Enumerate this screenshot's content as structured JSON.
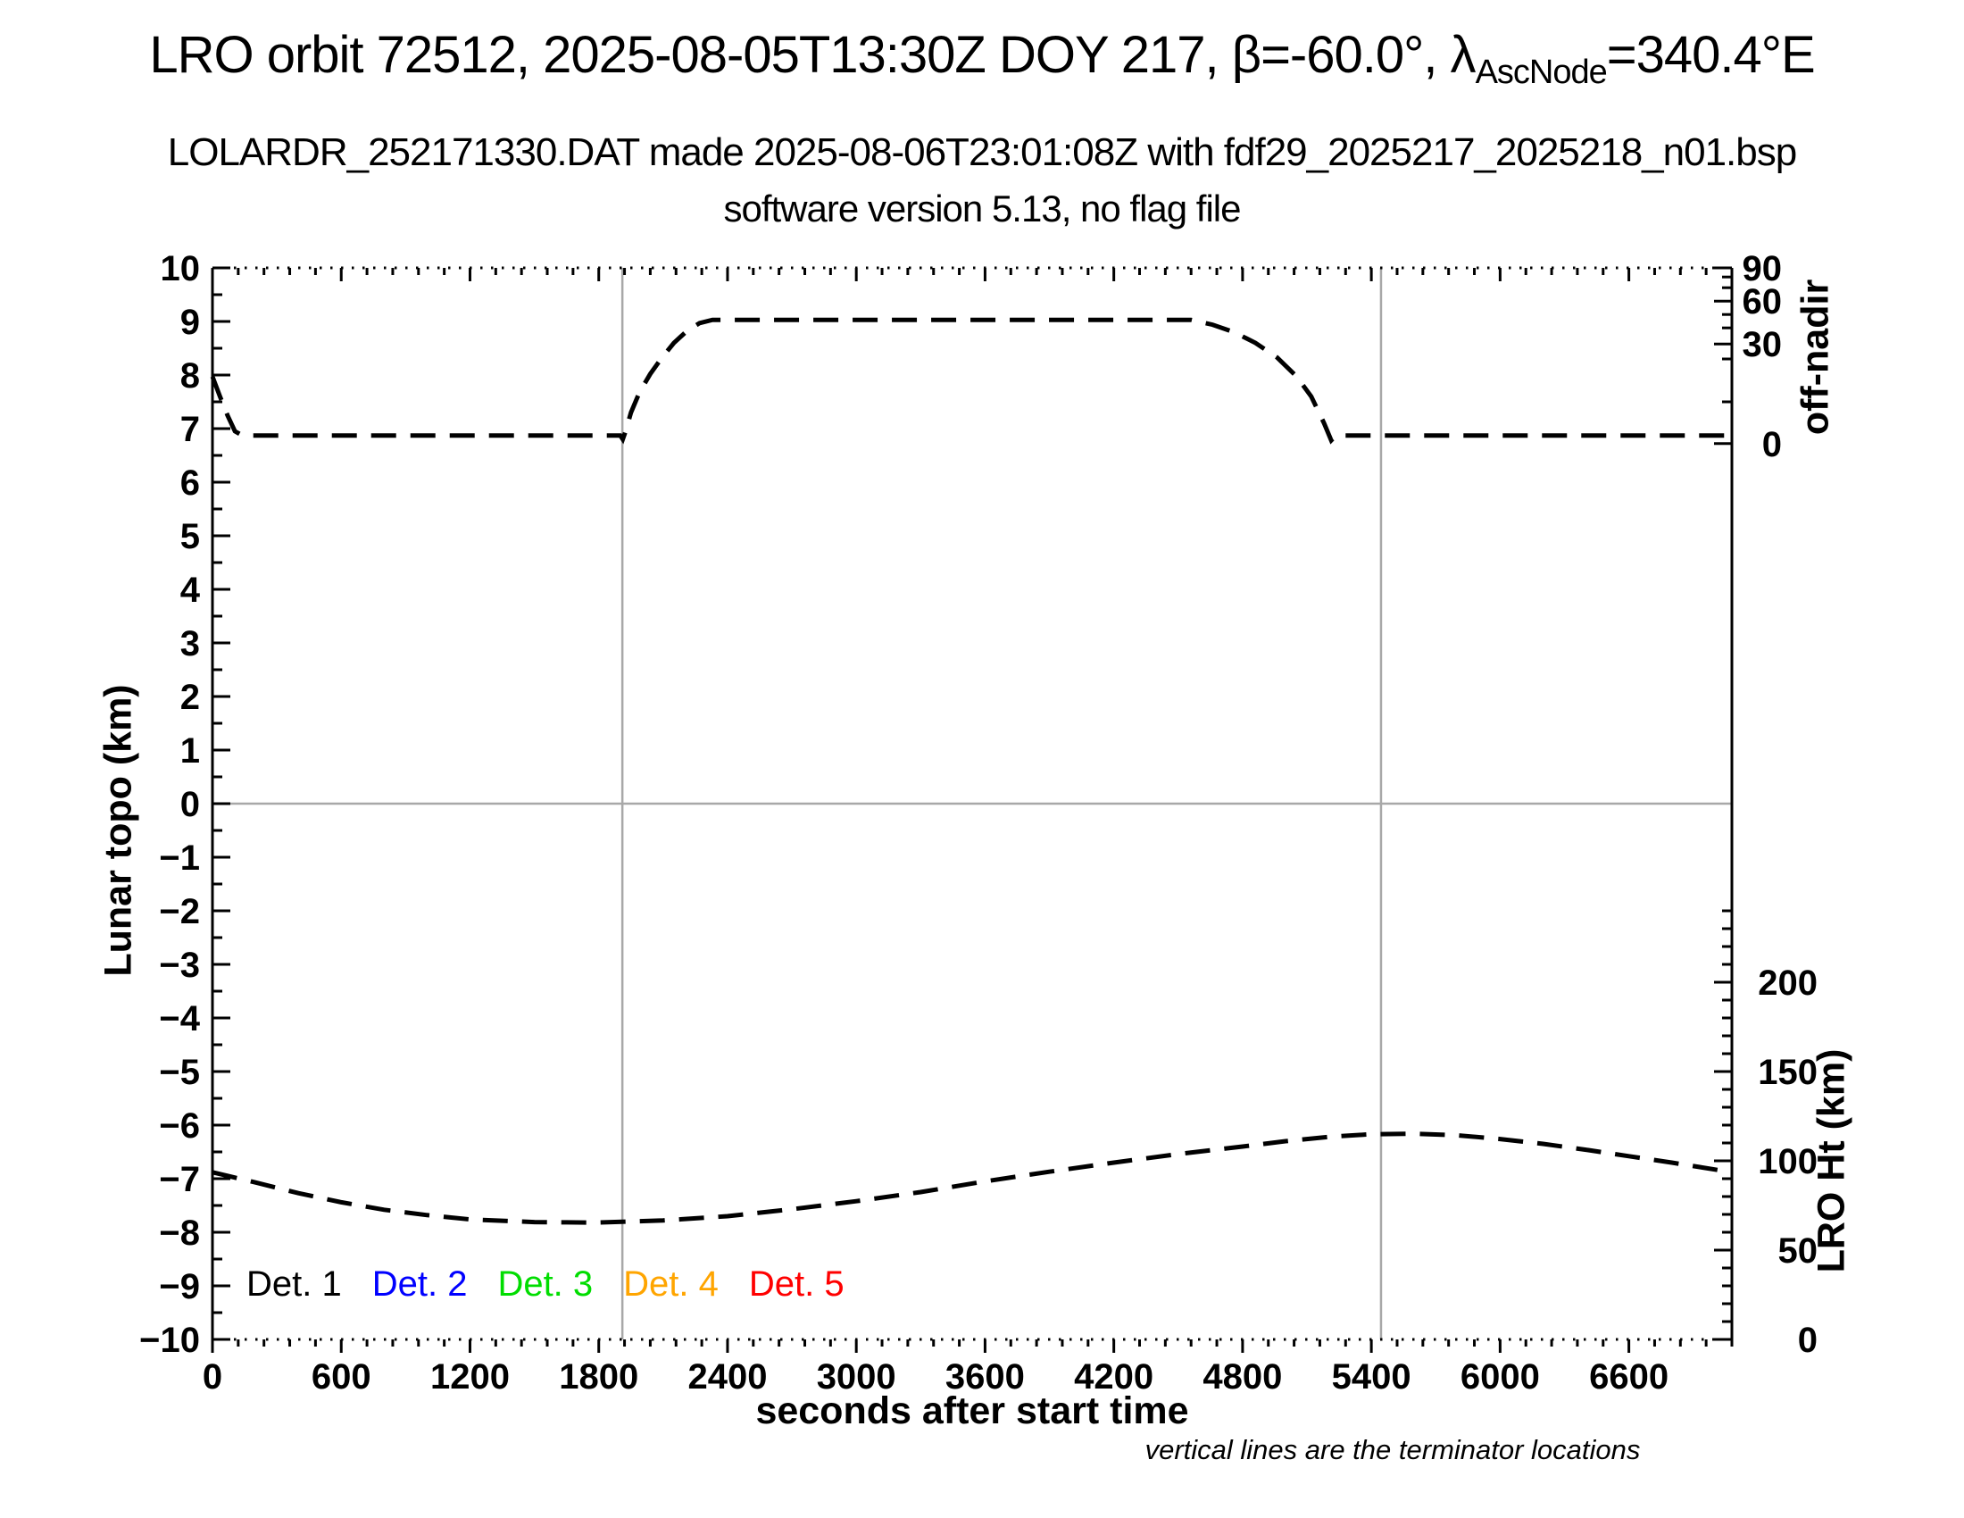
{
  "header": {
    "title_prefix": "LRO orbit 72512, 2025-08-05T13:30Z DOY 217, β=-60.0°, λ",
    "title_subscript": "AscNode",
    "title_suffix": "=340.4°E",
    "subtitle": "LOLARDR_252171330.DAT made 2025-08-06T23:01:08Z with fdf29_2025217_2025218_n01.bsp",
    "subtitle2": "software version 5.13, no flag file"
  },
  "note": "vertical lines are the terminator locations",
  "legend": {
    "items": [
      {
        "label": "Det. 1",
        "color": "#000000"
      },
      {
        "label": "Det. 2",
        "color": "#0000ff"
      },
      {
        "label": "Det. 3",
        "color": "#00dd00"
      },
      {
        "label": "Det. 4",
        "color": "#ffa500"
      },
      {
        "label": "Det. 5",
        "color": "#ff0000"
      }
    ]
  },
  "chart_data": {
    "type": "line",
    "xlabel": "seconds after start time",
    "x_range_s": [
      0,
      7080
    ],
    "x_major_tick_interval_s": 600,
    "x_minor_tick_interval_s": 120,
    "x_tick_values": [
      0,
      600,
      1200,
      1800,
      2400,
      3000,
      3600,
      4200,
      4800,
      5400,
      6000,
      6600
    ],
    "x_tick_labels": [
      "0",
      "600",
      "1200",
      "1800",
      "2400",
      "3000",
      "3600",
      "4200",
      "4800",
      "5400",
      "6000",
      "6600"
    ],
    "left_axis": {
      "label": "Lunar topo (km)",
      "range": [
        -10,
        10
      ],
      "tick_values": [
        10,
        9,
        8,
        7,
        6,
        5,
        4,
        3,
        2,
        1,
        0,
        -1,
        -2,
        -3,
        -4,
        -5,
        -6,
        -7,
        -8,
        -9,
        -10
      ],
      "tick_labels": [
        "10",
        "9",
        "8",
        "7",
        "6",
        "5",
        "4",
        "3",
        "2",
        "1",
        "0",
        "−1",
        "−2",
        "−3",
        "−4",
        "−5",
        "−6",
        "−7",
        "−8",
        "−9",
        "−10"
      ],
      "minor_step": 0.5
    },
    "right_top_axis": {
      "label": "off-nadir",
      "tick_labels": [
        "90",
        "60",
        "30",
        "0"
      ],
      "tick_y_km": [
        10.0,
        9.38,
        8.58,
        6.72
      ],
      "minor_y_km": [
        9.83,
        9.63,
        9.13,
        8.88,
        8.3,
        7.5
      ]
    },
    "right_bottom_axis": {
      "label": "LRO Ht (km)",
      "tick_values_km": [
        200,
        150,
        100,
        50,
        0
      ],
      "tick_labels": [
        "200",
        "150",
        "100",
        "50",
        "0"
      ],
      "minor_step_km": 10,
      "minor_max_km": 240
    },
    "zero_line_km": 0,
    "terminator_lines_s": [
      1910,
      5445
    ],
    "grid_color": "#a8a8a8",
    "series": [
      {
        "name": "off-nadir angle trace (left-axis km units)",
        "color": "#000000",
        "style": "dashed",
        "points": [
          [
            0,
            7.97
          ],
          [
            35,
            7.6
          ],
          [
            70,
            7.25
          ],
          [
            105,
            6.95
          ],
          [
            140,
            6.87
          ],
          [
            1900,
            6.87
          ],
          [
            1912,
            6.8
          ],
          [
            1925,
            6.95
          ],
          [
            1950,
            7.3
          ],
          [
            1990,
            7.68
          ],
          [
            2040,
            8.02
          ],
          [
            2090,
            8.3
          ],
          [
            2150,
            8.6
          ],
          [
            2210,
            8.82
          ],
          [
            2270,
            8.97
          ],
          [
            2330,
            9.03
          ],
          [
            4560,
            9.03
          ],
          [
            4660,
            8.94
          ],
          [
            4760,
            8.8
          ],
          [
            4860,
            8.6
          ],
          [
            4960,
            8.33
          ],
          [
            5050,
            7.98
          ],
          [
            5120,
            7.6
          ],
          [
            5180,
            7.1
          ],
          [
            5213,
            6.78
          ],
          [
            5235,
            6.87
          ],
          [
            7080,
            6.87
          ]
        ]
      },
      {
        "name": "LRO height trace (left-axis km units)",
        "color": "#000000",
        "style": "dashed",
        "points": [
          [
            0,
            -6.88
          ],
          [
            200,
            -7.07
          ],
          [
            400,
            -7.27
          ],
          [
            600,
            -7.44
          ],
          [
            800,
            -7.58
          ],
          [
            1000,
            -7.68
          ],
          [
            1200,
            -7.76
          ],
          [
            1500,
            -7.81
          ],
          [
            1790,
            -7.82
          ],
          [
            2100,
            -7.78
          ],
          [
            2400,
            -7.7
          ],
          [
            2700,
            -7.57
          ],
          [
            3000,
            -7.42
          ],
          [
            3300,
            -7.25
          ],
          [
            3600,
            -7.05
          ],
          [
            3900,
            -6.87
          ],
          [
            4200,
            -6.7
          ],
          [
            4500,
            -6.54
          ],
          [
            4800,
            -6.4
          ],
          [
            5000,
            -6.3
          ],
          [
            5200,
            -6.22
          ],
          [
            5400,
            -6.17
          ],
          [
            5600,
            -6.16
          ],
          [
            5800,
            -6.19
          ],
          [
            6000,
            -6.26
          ],
          [
            6200,
            -6.35
          ],
          [
            6400,
            -6.46
          ],
          [
            6600,
            -6.58
          ],
          [
            6800,
            -6.7
          ],
          [
            7080,
            -6.88
          ]
        ]
      }
    ]
  }
}
